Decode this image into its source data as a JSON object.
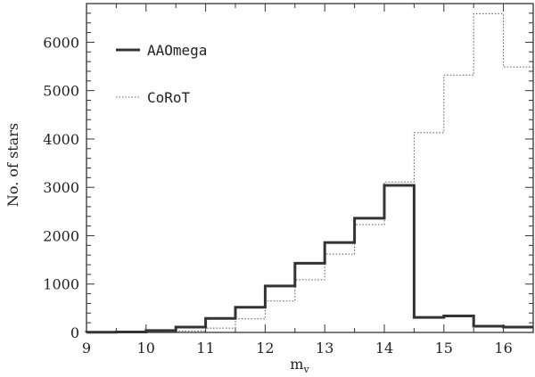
{
  "chart_data": {
    "type": "histogram",
    "xlabel": "m",
    "xlabel_sub": "v",
    "ylabel": "No. of stars",
    "xlim": [
      9,
      16.5
    ],
    "ylim": [
      0,
      6800
    ],
    "x_ticks": [
      9,
      10,
      11,
      12,
      13,
      14,
      15,
      16
    ],
    "y_ticks": [
      0,
      1000,
      2000,
      3000,
      4000,
      5000,
      6000
    ],
    "bin_edges": [
      9,
      9.5,
      10,
      10.5,
      11,
      11.5,
      12,
      12.5,
      13,
      13.5,
      14,
      14.5,
      15,
      15.5,
      16,
      16.5
    ],
    "series": [
      {
        "name": "AAOmega",
        "style": "solid",
        "color": "#333333",
        "values": [
          5,
          10,
          40,
          110,
          290,
          520,
          960,
          1430,
          1860,
          2360,
          3040,
          310,
          340,
          130,
          110
        ]
      },
      {
        "name": "CoRoT",
        "style": "dotted",
        "color": "#555555",
        "values": [
          0,
          2,
          10,
          30,
          90,
          280,
          650,
          1090,
          1620,
          2230,
          3110,
          4130,
          5320,
          6590,
          5490
        ]
      }
    ],
    "legend_position": "top-left",
    "grid": false
  }
}
